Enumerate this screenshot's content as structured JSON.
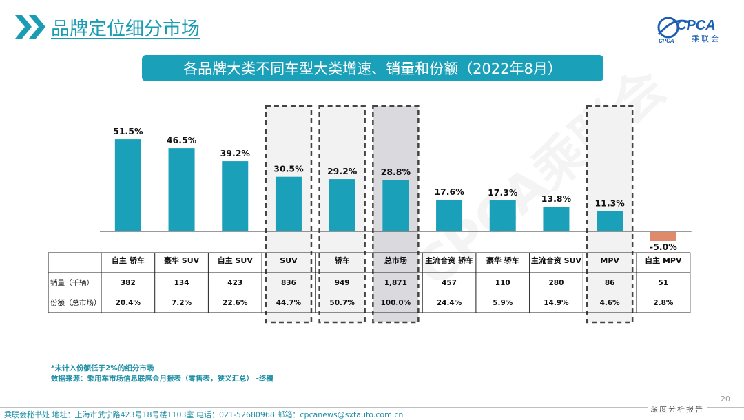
{
  "header": {
    "title": "品牌定位细分市场"
  },
  "logo": {
    "text": "CPCA",
    "subtext": "乘联会",
    "small": "CPCA"
  },
  "chart_title": "各品牌大类不同车型大类增速、销量和份额（2022年8月）",
  "colors": {
    "accent": "#1aa0b8",
    "negative": "#e08a6c",
    "highlight_fill": "#d9d9de",
    "box_fill": "#f2f2f2",
    "dash": "#444444"
  },
  "chart_data": {
    "type": "bar",
    "categories": [
      "自主 轿车",
      "豪华 SUV",
      "自主 SUV",
      "SUV",
      "轿车",
      "总市场",
      "主流合资 轿车",
      "豪华 轿车",
      "主流合资 SUV",
      "MPV",
      "自主 MPV"
    ],
    "series": [
      {
        "values": [
          51.5,
          46.5,
          39.2,
          30.5,
          29.2,
          28.8,
          17.6,
          17.3,
          13.8,
          11.3,
          -5.0
        ]
      }
    ],
    "value_labels": [
      "51.5%",
      "46.5%",
      "39.2%",
      "30.5%",
      "29.2%",
      "28.8%",
      "17.6%",
      "17.3%",
      "13.8%",
      "11.3%",
      "-5.0%"
    ],
    "ylim": [
      -5,
      55
    ],
    "highlighted": [
      "SUV",
      "轿车",
      "总市场",
      "MPV"
    ],
    "table": {
      "rows": [
        {
          "label": "销量（千辆）",
          "values": [
            "382",
            "134",
            "423",
            "836",
            "949",
            "1,871",
            "457",
            "110",
            "280",
            "86",
            "51"
          ]
        },
        {
          "label": "份额（总市场）",
          "values": [
            "20.4%",
            "7.2%",
            "22.6%",
            "44.7%",
            "50.7%",
            "100.0%",
            "24.4%",
            "5.9%",
            "14.9%",
            "4.6%",
            "2.8%"
          ]
        }
      ]
    }
  },
  "notes": {
    "line1": "*未计入份额低于2%的细分市场",
    "line2": "数据来源：乘用车市场信息联席会月报表（零售表，狭义汇总） -终稿"
  },
  "footer": {
    "text": "乘联会秘书处   地址：上海市武宁路423号18号楼1103室  电话：021-52680968  邮箱：cpcanews@sxtauto.com.cn",
    "page_number": "20",
    "report_label": "深度分析报告"
  },
  "watermark": "CPCA乘联会"
}
